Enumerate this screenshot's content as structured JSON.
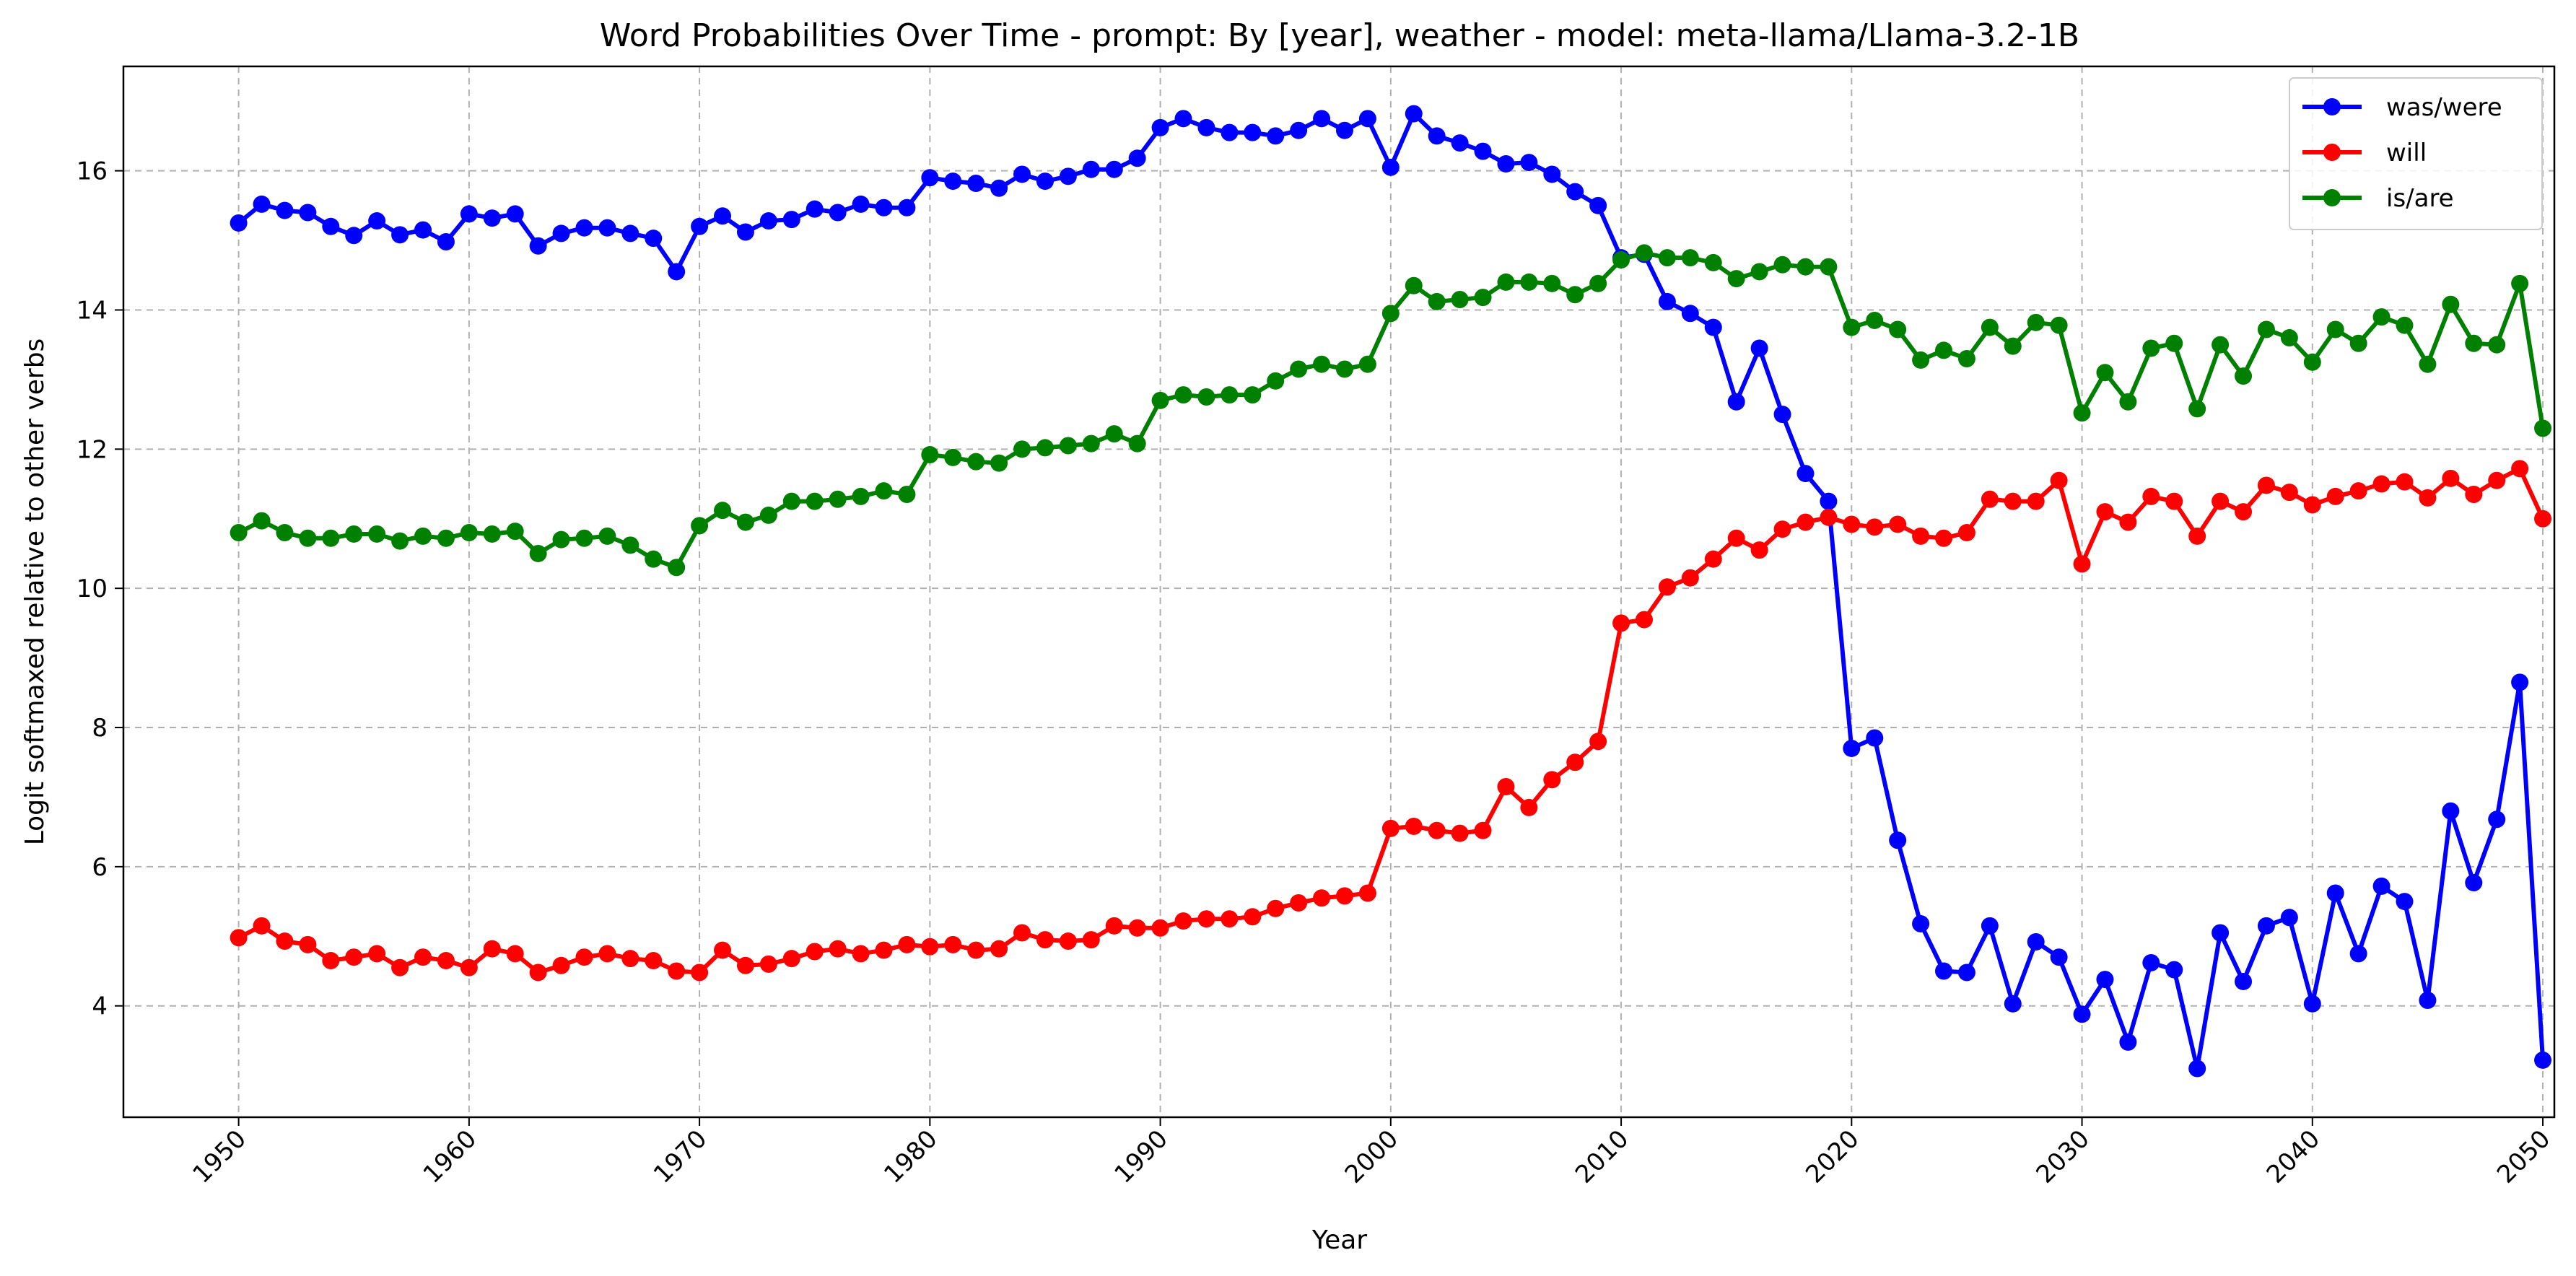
{
  "chart_data": {
    "type": "line",
    "title": "Word Probabilities Over Time - prompt: By [year], weather - model: meta-llama/Llama-3.2-1B",
    "xlabel": "Year",
    "ylabel": "Logit softmaxed relative to other verbs",
    "xlim": [
      1945,
      2050.5
    ],
    "ylim": [
      2.4,
      17.5
    ],
    "x_ticks": [
      1950,
      1960,
      1970,
      1980,
      1990,
      2000,
      2010,
      2020,
      2030,
      2040,
      2050
    ],
    "y_ticks": [
      4,
      6,
      8,
      10,
      12,
      14,
      16
    ],
    "grid": true,
    "legend_position": "top-right",
    "x_start": 1950,
    "series": [
      {
        "name": "was/were",
        "color": "#0000ff",
        "values": [
          15.25,
          15.52,
          15.43,
          15.4,
          15.2,
          15.07,
          15.28,
          15.08,
          15.15,
          14.98,
          15.38,
          15.32,
          15.38,
          14.92,
          15.1,
          15.18,
          15.18,
          15.1,
          15.03,
          14.55,
          15.2,
          15.35,
          15.12,
          15.28,
          15.3,
          15.45,
          15.4,
          15.52,
          15.47,
          15.47,
          15.9,
          15.85,
          15.82,
          15.75,
          15.95,
          15.85,
          15.92,
          16.02,
          16.02,
          16.18,
          16.62,
          16.75,
          16.62,
          16.55,
          16.55,
          16.5,
          16.58,
          16.75,
          16.58,
          16.75,
          16.05,
          16.82,
          16.5,
          16.4,
          16.28,
          16.1,
          16.12,
          15.95,
          15.7,
          15.5,
          14.75,
          14.8,
          14.12,
          13.95,
          13.75,
          12.68,
          13.45,
          12.5,
          11.65,
          11.25,
          7.7,
          7.85,
          6.38,
          5.18,
          4.5,
          4.48,
          5.15,
          4.03,
          4.92,
          4.7,
          3.88,
          4.38,
          3.48,
          4.62,
          4.52,
          3.1,
          5.05,
          4.35,
          5.15,
          5.27,
          4.03,
          5.62,
          4.75,
          5.72,
          5.5,
          4.08,
          6.8,
          5.77,
          6.68,
          8.65,
          3.22
        ]
      },
      {
        "name": "will",
        "color": "#ff0000",
        "values": [
          4.98,
          5.15,
          4.93,
          4.88,
          4.65,
          4.7,
          4.75,
          4.55,
          4.7,
          4.65,
          4.55,
          4.82,
          4.75,
          4.48,
          4.58,
          4.7,
          4.75,
          4.68,
          4.65,
          4.5,
          4.48,
          4.8,
          4.58,
          4.6,
          4.68,
          4.78,
          4.82,
          4.75,
          4.8,
          4.88,
          4.85,
          4.88,
          4.8,
          4.82,
          5.05,
          4.95,
          4.93,
          4.95,
          5.15,
          5.12,
          5.12,
          5.22,
          5.25,
          5.25,
          5.28,
          5.4,
          5.48,
          5.55,
          5.58,
          5.62,
          6.55,
          6.58,
          6.52,
          6.48,
          6.52,
          7.15,
          6.85,
          7.25,
          7.5,
          7.8,
          9.5,
          9.55,
          10.02,
          10.15,
          10.42,
          10.72,
          10.55,
          10.85,
          10.95,
          11.02,
          10.92,
          10.88,
          10.92,
          10.75,
          10.72,
          10.8,
          11.28,
          11.25,
          11.25,
          11.55,
          10.35,
          11.1,
          10.95,
          11.32,
          11.25,
          10.75,
          11.25,
          11.1,
          11.48,
          11.38,
          11.2,
          11.32,
          11.4,
          11.5,
          11.53,
          11.3,
          11.58,
          11.35,
          11.55,
          11.72,
          11.0
        ]
      },
      {
        "name": "is/are",
        "color": "#008000",
        "values": [
          10.8,
          10.97,
          10.8,
          10.72,
          10.72,
          10.78,
          10.78,
          10.68,
          10.75,
          10.72,
          10.8,
          10.78,
          10.82,
          10.5,
          10.7,
          10.72,
          10.75,
          10.62,
          10.42,
          10.3,
          10.9,
          11.12,
          10.95,
          11.05,
          11.25,
          11.25,
          11.28,
          11.32,
          11.4,
          11.35,
          11.92,
          11.88,
          11.82,
          11.8,
          12.0,
          12.02,
          12.05,
          12.08,
          12.22,
          12.08,
          12.7,
          12.78,
          12.75,
          12.78,
          12.78,
          12.98,
          13.15,
          13.22,
          13.15,
          13.22,
          13.95,
          14.35,
          14.12,
          14.15,
          14.18,
          14.4,
          14.4,
          14.38,
          14.22,
          14.38,
          14.72,
          14.82,
          14.75,
          14.75,
          14.68,
          14.45,
          14.55,
          14.65,
          14.62,
          14.62,
          13.75,
          13.85,
          13.72,
          13.28,
          13.42,
          13.3,
          13.75,
          13.48,
          13.82,
          13.78,
          12.52,
          13.1,
          12.68,
          13.45,
          13.52,
          12.58,
          13.5,
          13.05,
          13.72,
          13.6,
          13.25,
          13.72,
          13.52,
          13.9,
          13.78,
          13.22,
          14.08,
          13.52,
          13.5,
          14.38,
          12.3
        ]
      }
    ]
  }
}
